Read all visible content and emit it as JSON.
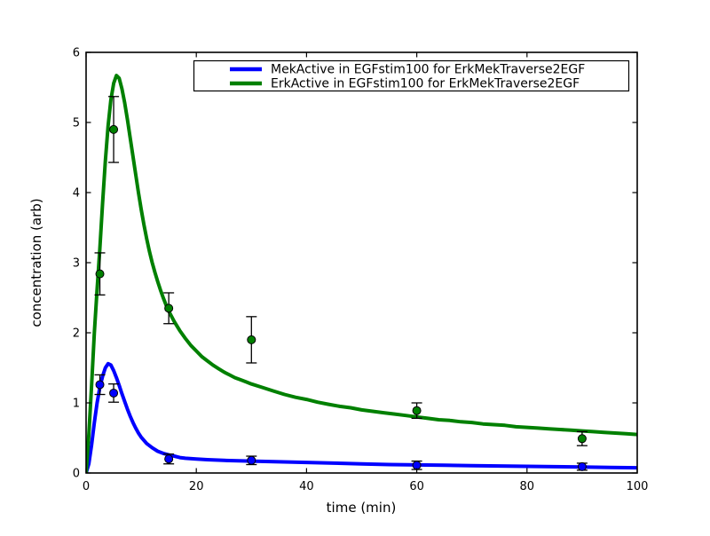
{
  "figure": {
    "background": "#ffffff",
    "frame_color": "#000000",
    "text_color": "#000000"
  },
  "chart_data": {
    "type": "line",
    "title": "",
    "xlabel": "time (min)",
    "ylabel": "concentration (arb)",
    "xlim": [
      0,
      100
    ],
    "ylim": [
      0,
      6
    ],
    "xticks": [
      0,
      20,
      40,
      60,
      80,
      100
    ],
    "yticks": [
      0,
      1,
      2,
      3,
      4,
      5,
      6
    ],
    "grid": false,
    "legend_position": "upper right",
    "series": [
      {
        "name": "MekActive in EGFstim100 for ErkMekTraverse2EGF",
        "color": "#0000ff",
        "curve": [
          [
            0,
            0
          ],
          [
            0.5,
            0.13
          ],
          [
            1,
            0.4
          ],
          [
            1.5,
            0.72
          ],
          [
            2,
            1.0
          ],
          [
            2.5,
            1.22
          ],
          [
            3,
            1.38
          ],
          [
            3.5,
            1.5
          ],
          [
            4,
            1.56
          ],
          [
            4.5,
            1.54
          ],
          [
            5,
            1.46
          ],
          [
            5.5,
            1.36
          ],
          [
            6,
            1.25
          ],
          [
            6.5,
            1.13
          ],
          [
            7,
            1.02
          ],
          [
            7.5,
            0.91
          ],
          [
            8,
            0.81
          ],
          [
            8.5,
            0.72
          ],
          [
            9,
            0.64
          ],
          [
            9.5,
            0.57
          ],
          [
            10,
            0.51
          ],
          [
            11,
            0.42
          ],
          [
            12,
            0.36
          ],
          [
            13,
            0.31
          ],
          [
            14,
            0.28
          ],
          [
            15,
            0.26
          ],
          [
            16,
            0.24
          ],
          [
            17,
            0.22
          ],
          [
            18,
            0.21
          ],
          [
            20,
            0.2
          ],
          [
            22,
            0.19
          ],
          [
            25,
            0.18
          ],
          [
            30,
            0.17
          ],
          [
            35,
            0.16
          ],
          [
            40,
            0.15
          ],
          [
            45,
            0.14
          ],
          [
            50,
            0.13
          ],
          [
            55,
            0.12
          ],
          [
            60,
            0.115
          ],
          [
            65,
            0.11
          ],
          [
            70,
            0.105
          ],
          [
            75,
            0.1
          ],
          [
            80,
            0.095
          ],
          [
            85,
            0.09
          ],
          [
            90,
            0.085
          ],
          [
            95,
            0.08
          ],
          [
            100,
            0.075
          ]
        ],
        "points": {
          "x": [
            2.5,
            5,
            15,
            30,
            60,
            90
          ],
          "y": [
            1.26,
            1.14,
            0.2,
            0.18,
            0.11,
            0.09
          ],
          "yerr": [
            0.14,
            0.13,
            0.07,
            0.06,
            0.06,
            0.05
          ]
        }
      },
      {
        "name": "ErkActive in EGFstim100 for ErkMekTraverse2EGF",
        "color": "#008000",
        "curve": [
          [
            0,
            0
          ],
          [
            0.5,
            0.55
          ],
          [
            1,
            1.25
          ],
          [
            1.5,
            2.0
          ],
          [
            2,
            2.62
          ],
          [
            2.5,
            3.2
          ],
          [
            3,
            3.85
          ],
          [
            3.5,
            4.45
          ],
          [
            4,
            4.95
          ],
          [
            4.5,
            5.32
          ],
          [
            5,
            5.56
          ],
          [
            5.5,
            5.67
          ],
          [
            6,
            5.63
          ],
          [
            6.5,
            5.48
          ],
          [
            7,
            5.28
          ],
          [
            7.5,
            5.04
          ],
          [
            8,
            4.78
          ],
          [
            8.5,
            4.52
          ],
          [
            9,
            4.26
          ],
          [
            9.5,
            4.0
          ],
          [
            10,
            3.76
          ],
          [
            10.5,
            3.54
          ],
          [
            11,
            3.34
          ],
          [
            11.5,
            3.16
          ],
          [
            12,
            3.0
          ],
          [
            12.5,
            2.86
          ],
          [
            13,
            2.73
          ],
          [
            13.5,
            2.61
          ],
          [
            14,
            2.5
          ],
          [
            14.5,
            2.4
          ],
          [
            15,
            2.31
          ],
          [
            16,
            2.16
          ],
          [
            17,
            2.03
          ],
          [
            18,
            1.92
          ],
          [
            19,
            1.82
          ],
          [
            20,
            1.74
          ],
          [
            21,
            1.66
          ],
          [
            22,
            1.6
          ],
          [
            23,
            1.54
          ],
          [
            24,
            1.49
          ],
          [
            25,
            1.44
          ],
          [
            26,
            1.4
          ],
          [
            27,
            1.36
          ],
          [
            28,
            1.33
          ],
          [
            29,
            1.3
          ],
          [
            30,
            1.27
          ],
          [
            32,
            1.22
          ],
          [
            34,
            1.17
          ],
          [
            36,
            1.12
          ],
          [
            38,
            1.08
          ],
          [
            40,
            1.05
          ],
          [
            42,
            1.01
          ],
          [
            44,
            0.98
          ],
          [
            46,
            0.95
          ],
          [
            48,
            0.93
          ],
          [
            50,
            0.9
          ],
          [
            52,
            0.88
          ],
          [
            54,
            0.86
          ],
          [
            56,
            0.84
          ],
          [
            58,
            0.82
          ],
          [
            60,
            0.8
          ],
          [
            62,
            0.78
          ],
          [
            64,
            0.76
          ],
          [
            66,
            0.75
          ],
          [
            68,
            0.73
          ],
          [
            70,
            0.72
          ],
          [
            72,
            0.7
          ],
          [
            74,
            0.69
          ],
          [
            76,
            0.68
          ],
          [
            78,
            0.66
          ],
          [
            80,
            0.65
          ],
          [
            82,
            0.64
          ],
          [
            84,
            0.63
          ],
          [
            86,
            0.62
          ],
          [
            88,
            0.61
          ],
          [
            90,
            0.6
          ],
          [
            92,
            0.59
          ],
          [
            94,
            0.58
          ],
          [
            96,
            0.57
          ],
          [
            98,
            0.56
          ],
          [
            100,
            0.55
          ]
        ],
        "points": {
          "x": [
            2.5,
            5,
            15,
            30,
            60,
            90
          ],
          "y": [
            2.84,
            4.9,
            2.35,
            1.9,
            0.89,
            0.49
          ],
          "yerr": [
            0.3,
            0.47,
            0.22,
            0.33,
            0.11,
            0.1
          ]
        }
      }
    ]
  }
}
